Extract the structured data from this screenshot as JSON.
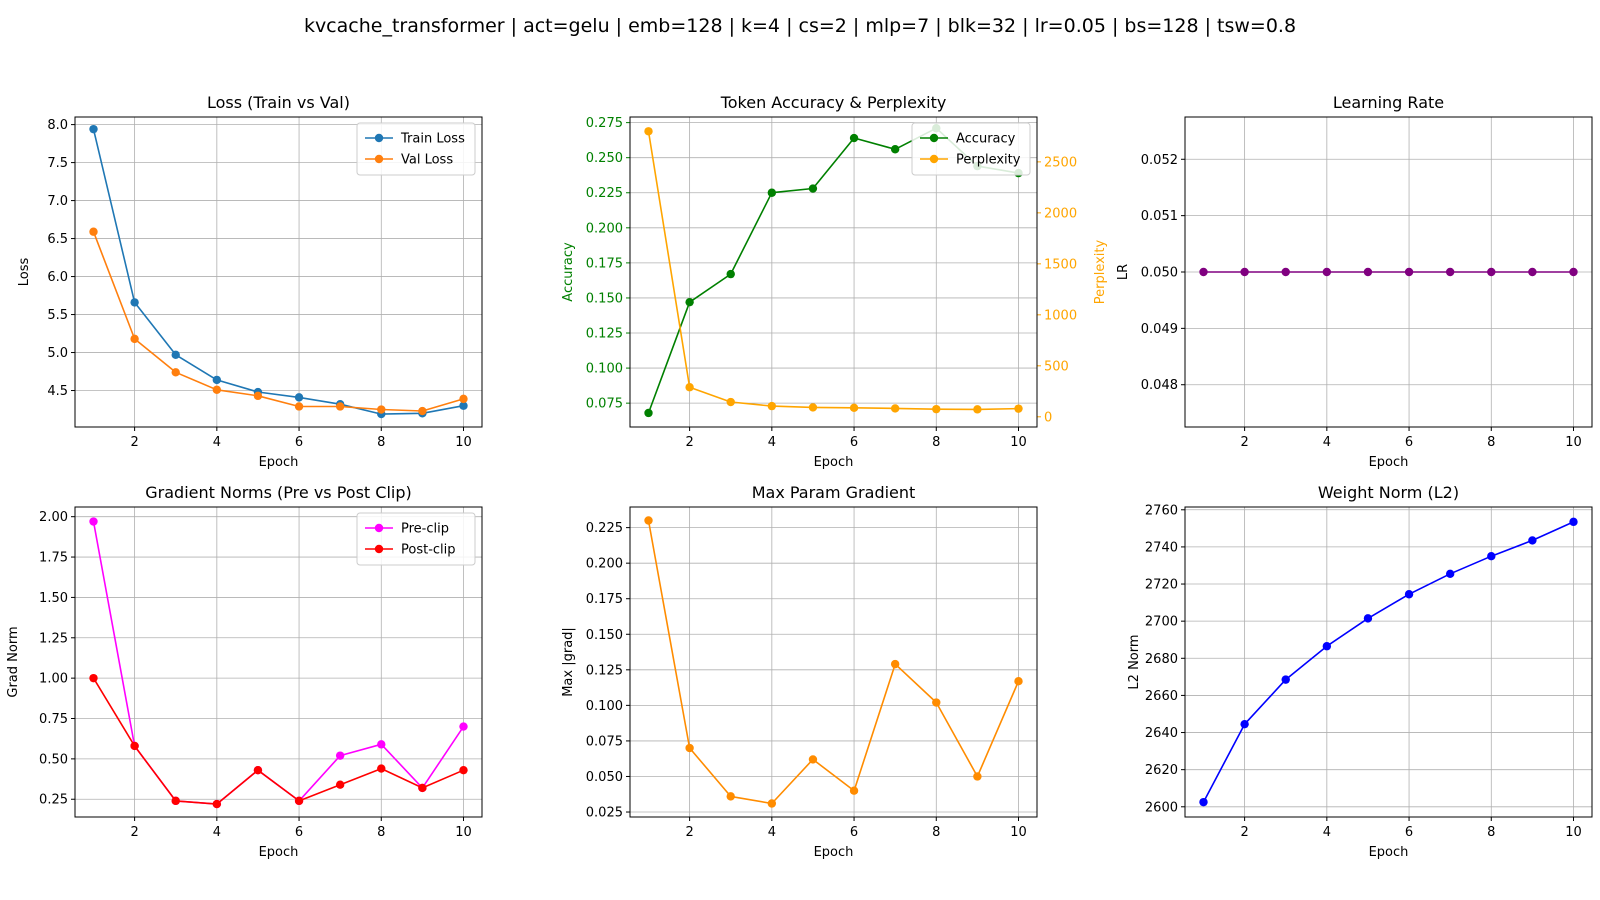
{
  "suptitle": "kvcache_transformer | act=gelu | emb=128 | k=4 | cs=2 | mlp=7 | blk=32 | lr=0.05 | bs=128 | tsw=0.8",
  "chart_data": [
    {
      "type": "line",
      "title": "Loss (Train vs Val)",
      "xlabel": "Epoch",
      "ylabel": "Loss",
      "x": [
        1,
        2,
        3,
        4,
        5,
        6,
        7,
        8,
        9,
        10
      ],
      "xlim": [
        0.55,
        10.45
      ],
      "ylim": [
        4.02,
        8.1
      ],
      "xticks": [
        2,
        4,
        6,
        8,
        10
      ],
      "yticks": [
        4.5,
        5.0,
        5.5,
        6.0,
        6.5,
        7.0,
        7.5,
        8.0
      ],
      "ytick_decimals": 1,
      "grid": true,
      "legend": "upper right",
      "series": [
        {
          "name": "Train Loss",
          "color": "#1f77b4",
          "values": [
            7.94,
            5.66,
            4.97,
            4.64,
            4.48,
            4.41,
            4.32,
            4.19,
            4.2,
            4.3
          ]
        },
        {
          "name": "Val Loss",
          "color": "#ff7f0e",
          "values": [
            6.59,
            5.18,
            4.74,
            4.51,
            4.43,
            4.29,
            4.29,
            4.25,
            4.23,
            4.39
          ]
        }
      ]
    },
    {
      "type": "line",
      "title": "Token Accuracy & Perplexity",
      "xlabel": "Epoch",
      "ylabel": "Accuracy",
      "ylabel_color": "#008000",
      "y2label": "Perplexity",
      "y2label_color": "#ffa500",
      "x": [
        1,
        2,
        3,
        4,
        5,
        6,
        7,
        8,
        9,
        10
      ],
      "xlim": [
        0.55,
        10.45
      ],
      "ylim": [
        0.058,
        0.279
      ],
      "y2lim": [
        -100,
        2940
      ],
      "xticks": [
        2,
        4,
        6,
        8,
        10
      ],
      "yticks": [
        0.075,
        0.1,
        0.125,
        0.15,
        0.175,
        0.2,
        0.225,
        0.25,
        0.275
      ],
      "ytick_decimals": 3,
      "y2ticks": [
        0,
        500,
        1000,
        1500,
        2000,
        2500
      ],
      "y2tick_decimals": 0,
      "grid": true,
      "legend": "upper right",
      "series": [
        {
          "name": "Accuracy",
          "color": "#008000",
          "axis": "left",
          "values": [
            0.068,
            0.147,
            0.167,
            0.225,
            0.228,
            0.264,
            0.256,
            0.271,
            0.244,
            0.239
          ]
        },
        {
          "name": "Perplexity",
          "color": "#ffa500",
          "axis": "right",
          "values": [
            2800,
            290,
            145,
            105,
            92,
            88,
            82,
            75,
            73,
            80
          ]
        }
      ]
    },
    {
      "type": "line",
      "title": "Learning Rate",
      "xlabel": "Epoch",
      "ylabel": "LR",
      "x": [
        1,
        2,
        3,
        4,
        5,
        6,
        7,
        8,
        9,
        10
      ],
      "xlim": [
        0.55,
        10.45
      ],
      "ylim": [
        0.04725,
        0.05275
      ],
      "xticks": [
        2,
        4,
        6,
        8,
        10
      ],
      "yticks": [
        0.048,
        0.049,
        0.05,
        0.051,
        0.052
      ],
      "ytick_decimals": 3,
      "grid": true,
      "series": [
        {
          "name": "",
          "color": "#800080",
          "values": [
            0.05,
            0.05,
            0.05,
            0.05,
            0.05,
            0.05,
            0.05,
            0.05,
            0.05,
            0.05
          ]
        }
      ]
    },
    {
      "type": "line",
      "title": "Gradient Norms (Pre vs Post Clip)",
      "xlabel": "Epoch",
      "ylabel": "Grad Norm",
      "x": [
        1,
        2,
        3,
        4,
        5,
        6,
        7,
        8,
        9,
        10
      ],
      "xlim": [
        0.55,
        10.45
      ],
      "ylim": [
        0.14,
        2.06
      ],
      "xticks": [
        2,
        4,
        6,
        8,
        10
      ],
      "yticks": [
        0.25,
        0.5,
        0.75,
        1.0,
        1.25,
        1.5,
        1.75,
        2.0
      ],
      "ytick_decimals": 2,
      "grid": true,
      "legend": "upper right",
      "series": [
        {
          "name": "Pre-clip",
          "color": "#ff00ff",
          "values": [
            1.97,
            0.58,
            0.24,
            0.22,
            0.43,
            0.24,
            0.52,
            0.59,
            0.32,
            0.7
          ]
        },
        {
          "name": "Post-clip",
          "color": "#ff0000",
          "values": [
            1.0,
            0.58,
            0.24,
            0.22,
            0.43,
            0.24,
            0.34,
            0.44,
            0.32,
            0.43
          ]
        }
      ]
    },
    {
      "type": "line",
      "title": "Max Param Gradient",
      "xlabel": "Epoch",
      "ylabel": "Max |grad|",
      "x": [
        1,
        2,
        3,
        4,
        5,
        6,
        7,
        8,
        9,
        10
      ],
      "xlim": [
        0.55,
        10.45
      ],
      "ylim": [
        0.0215,
        0.2395
      ],
      "xticks": [
        2,
        4,
        6,
        8,
        10
      ],
      "yticks": [
        0.025,
        0.05,
        0.075,
        0.1,
        0.125,
        0.15,
        0.175,
        0.2,
        0.225
      ],
      "ytick_decimals": 3,
      "grid": true,
      "series": [
        {
          "name": "",
          "color": "#ff8c00",
          "values": [
            0.23,
            0.07,
            0.036,
            0.031,
            0.062,
            0.04,
            0.129,
            0.102,
            0.05,
            0.117
          ]
        }
      ]
    },
    {
      "type": "line",
      "title": "Weight Norm (L2)",
      "xlabel": "Epoch",
      "ylabel": "L2 Norm",
      "x": [
        1,
        2,
        3,
        4,
        5,
        6,
        7,
        8,
        9,
        10
      ],
      "xlim": [
        0.55,
        10.45
      ],
      "ylim": [
        2594.5,
        2761.5
      ],
      "xticks": [
        2,
        4,
        6,
        8,
        10
      ],
      "yticks": [
        2600,
        2620,
        2640,
        2660,
        2680,
        2700,
        2720,
        2740,
        2760
      ],
      "ytick_decimals": 0,
      "grid": true,
      "series": [
        {
          "name": "",
          "color": "#0000ff",
          "values": [
            2602.5,
            2644.5,
            2668.5,
            2686.5,
            2701.5,
            2714.5,
            2725.5,
            2735,
            2743.5,
            2753.5
          ]
        }
      ]
    }
  ]
}
